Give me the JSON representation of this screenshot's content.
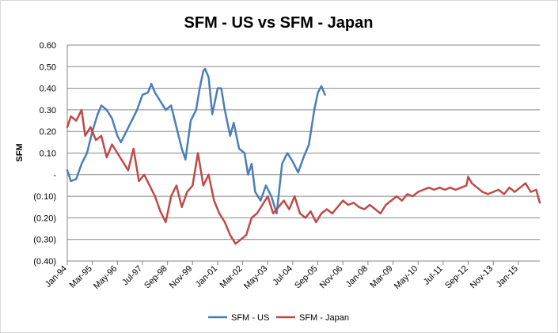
{
  "chart_data": {
    "type": "line",
    "title": "SFM - US vs SFM - Japan",
    "xlabel": "",
    "ylabel": "SFM",
    "ylim": [
      -0.4,
      0.6
    ],
    "yticks": [
      {
        "value": 0.6,
        "label": "0.60"
      },
      {
        "value": 0.5,
        "label": "0.50"
      },
      {
        "value": 0.4,
        "label": "0.40"
      },
      {
        "value": 0.3,
        "label": "0.30"
      },
      {
        "value": 0.2,
        "label": "0.20"
      },
      {
        "value": 0.1,
        "label": "0.10"
      },
      {
        "value": 0.0,
        "label": "-"
      },
      {
        "value": -0.1,
        "label": "(0.10)"
      },
      {
        "value": -0.2,
        "label": "(0.20)"
      },
      {
        "value": -0.3,
        "label": "(0.30)"
      },
      {
        "value": -0.4,
        "label": "(0.40)"
      }
    ],
    "xlim": [
      "1994-01",
      "2016-01"
    ],
    "xticks": [
      {
        "date": "1994-01",
        "label": "Jan-94"
      },
      {
        "date": "1995-03",
        "label": "Mar-95"
      },
      {
        "date": "1996-05",
        "label": "May-96"
      },
      {
        "date": "1997-07",
        "label": "Jul-97"
      },
      {
        "date": "1998-09",
        "label": "Sep-98"
      },
      {
        "date": "1999-11",
        "label": "Nov-99"
      },
      {
        "date": "2001-01",
        "label": "Jan-01"
      },
      {
        "date": "2002-03",
        "label": "Mar-02"
      },
      {
        "date": "2003-05",
        "label": "May-03"
      },
      {
        "date": "2004-07",
        "label": "Jul-04"
      },
      {
        "date": "2005-09",
        "label": "Sep-05"
      },
      {
        "date": "2006-11",
        "label": "Nov-06"
      },
      {
        "date": "2008-01",
        "label": "Jan-08"
      },
      {
        "date": "2009-03",
        "label": "Mar-09"
      },
      {
        "date": "2010-05",
        "label": "May-10"
      },
      {
        "date": "2011-07",
        "label": "Jul-11"
      },
      {
        "date": "2012-09",
        "label": "Sep-12"
      },
      {
        "date": "2013-11",
        "label": "Nov-13"
      },
      {
        "date": "2015-01",
        "label": "Jan-15"
      }
    ],
    "grid": "horizontal",
    "legend": "bottom",
    "series": [
      {
        "name": "SFM - US",
        "color": "#4a7ebb",
        "points": [
          [
            "1994-01",
            0.02
          ],
          [
            "1994-03",
            -0.03
          ],
          [
            "1994-06",
            -0.02
          ],
          [
            "1994-09",
            0.05
          ],
          [
            "1994-12",
            0.1
          ],
          [
            "1995-03",
            0.2
          ],
          [
            "1995-06",
            0.28
          ],
          [
            "1995-08",
            0.32
          ],
          [
            "1995-11",
            0.3
          ],
          [
            "1996-02",
            0.26
          ],
          [
            "1996-05",
            0.18
          ],
          [
            "1996-07",
            0.15
          ],
          [
            "1996-10",
            0.2
          ],
          [
            "1997-01",
            0.25
          ],
          [
            "1997-04",
            0.3
          ],
          [
            "1997-07",
            0.37
          ],
          [
            "1997-10",
            0.38
          ],
          [
            "1997-12",
            0.42
          ],
          [
            "1998-02",
            0.38
          ],
          [
            "1998-05",
            0.34
          ],
          [
            "1998-08",
            0.3
          ],
          [
            "1998-11",
            0.32
          ],
          [
            "1999-02",
            0.22
          ],
          [
            "1999-05",
            0.12
          ],
          [
            "1999-07",
            0.07
          ],
          [
            "1999-10",
            0.25
          ],
          [
            "2000-01",
            0.3
          ],
          [
            "2000-03",
            0.4
          ],
          [
            "2000-05",
            0.48
          ],
          [
            "2000-06",
            0.49
          ],
          [
            "2000-08",
            0.45
          ],
          [
            "2000-10",
            0.28
          ],
          [
            "2001-01",
            0.4
          ],
          [
            "2001-03",
            0.4
          ],
          [
            "2001-05",
            0.3
          ],
          [
            "2001-08",
            0.18
          ],
          [
            "2001-10",
            0.24
          ],
          [
            "2002-01",
            0.12
          ],
          [
            "2002-04",
            0.1
          ],
          [
            "2002-06",
            0.0
          ],
          [
            "2002-08",
            0.05
          ],
          [
            "2002-10",
            -0.08
          ],
          [
            "2003-01",
            -0.12
          ],
          [
            "2003-04",
            -0.05
          ],
          [
            "2003-07",
            -0.1
          ],
          [
            "2003-10",
            -0.18
          ],
          [
            "2004-01",
            0.05
          ],
          [
            "2004-04",
            0.1
          ],
          [
            "2004-07",
            0.06
          ],
          [
            "2004-10",
            0.01
          ],
          [
            "2005-01",
            0.08
          ],
          [
            "2005-04",
            0.14
          ],
          [
            "2005-07",
            0.3
          ],
          [
            "2005-09",
            0.38
          ],
          [
            "2005-11",
            0.41
          ],
          [
            "2006-01",
            0.37
          ]
        ]
      },
      {
        "name": "SFM - Japan",
        "color": "#be4b48",
        "points": [
          [
            "1994-01",
            0.22
          ],
          [
            "1994-03",
            0.27
          ],
          [
            "1994-06",
            0.25
          ],
          [
            "1994-09",
            0.3
          ],
          [
            "1994-11",
            0.18
          ],
          [
            "1995-02",
            0.22
          ],
          [
            "1995-05",
            0.16
          ],
          [
            "1995-08",
            0.18
          ],
          [
            "1995-11",
            0.08
          ],
          [
            "1996-02",
            0.14
          ],
          [
            "1996-05",
            0.1
          ],
          [
            "1996-08",
            0.06
          ],
          [
            "1996-11",
            0.02
          ],
          [
            "1997-02",
            0.12
          ],
          [
            "1997-05",
            -0.03
          ],
          [
            "1997-08",
            0.0
          ],
          [
            "1997-11",
            -0.05
          ],
          [
            "1998-02",
            -0.1
          ],
          [
            "1998-05",
            -0.17
          ],
          [
            "1998-08",
            -0.22
          ],
          [
            "1998-11",
            -0.1
          ],
          [
            "1999-02",
            -0.05
          ],
          [
            "1999-05",
            -0.15
          ],
          [
            "1999-08",
            -0.08
          ],
          [
            "1999-11",
            -0.05
          ],
          [
            "2000-02",
            0.1
          ],
          [
            "2000-05",
            -0.05
          ],
          [
            "2000-08",
            0.0
          ],
          [
            "2000-11",
            -0.12
          ],
          [
            "2001-02",
            -0.18
          ],
          [
            "2001-05",
            -0.22
          ],
          [
            "2001-08",
            -0.28
          ],
          [
            "2001-11",
            -0.32
          ],
          [
            "2002-02",
            -0.3
          ],
          [
            "2002-05",
            -0.28
          ],
          [
            "2002-08",
            -0.2
          ],
          [
            "2002-11",
            -0.18
          ],
          [
            "2003-02",
            -0.14
          ],
          [
            "2003-05",
            -0.1
          ],
          [
            "2003-08",
            -0.18
          ],
          [
            "2003-11",
            -0.15
          ],
          [
            "2004-02",
            -0.12
          ],
          [
            "2004-05",
            -0.16
          ],
          [
            "2004-08",
            -0.1
          ],
          [
            "2004-11",
            -0.18
          ],
          [
            "2005-02",
            -0.2
          ],
          [
            "2005-05",
            -0.17
          ],
          [
            "2005-08",
            -0.22
          ],
          [
            "2005-11",
            -0.18
          ],
          [
            "2006-02",
            -0.16
          ],
          [
            "2006-05",
            -0.18
          ],
          [
            "2006-08",
            -0.15
          ],
          [
            "2006-11",
            -0.12
          ],
          [
            "2007-02",
            -0.14
          ],
          [
            "2007-05",
            -0.13
          ],
          [
            "2007-08",
            -0.15
          ],
          [
            "2007-11",
            -0.16
          ],
          [
            "2008-02",
            -0.14
          ],
          [
            "2008-05",
            -0.16
          ],
          [
            "2008-08",
            -0.18
          ],
          [
            "2008-11",
            -0.14
          ],
          [
            "2009-02",
            -0.12
          ],
          [
            "2009-05",
            -0.1
          ],
          [
            "2009-08",
            -0.12
          ],
          [
            "2009-11",
            -0.09
          ],
          [
            "2010-02",
            -0.1
          ],
          [
            "2010-05",
            -0.08
          ],
          [
            "2010-08",
            -0.07
          ],
          [
            "2010-11",
            -0.06
          ],
          [
            "2011-02",
            -0.07
          ],
          [
            "2011-05",
            -0.06
          ],
          [
            "2011-08",
            -0.07
          ],
          [
            "2011-11",
            -0.06
          ],
          [
            "2012-02",
            -0.07
          ],
          [
            "2012-05",
            -0.06
          ],
          [
            "2012-08",
            -0.05
          ],
          [
            "2012-09",
            -0.01
          ],
          [
            "2012-11",
            -0.04
          ],
          [
            "2013-02",
            -0.06
          ],
          [
            "2013-05",
            -0.08
          ],
          [
            "2013-08",
            -0.09
          ],
          [
            "2013-11",
            -0.08
          ],
          [
            "2014-02",
            -0.07
          ],
          [
            "2014-05",
            -0.09
          ],
          [
            "2014-08",
            -0.06
          ],
          [
            "2014-11",
            -0.08
          ],
          [
            "2015-02",
            -0.06
          ],
          [
            "2015-05",
            -0.04
          ],
          [
            "2015-08",
            -0.08
          ],
          [
            "2015-11",
            -0.07
          ],
          [
            "2016-01",
            -0.13
          ]
        ]
      }
    ]
  }
}
